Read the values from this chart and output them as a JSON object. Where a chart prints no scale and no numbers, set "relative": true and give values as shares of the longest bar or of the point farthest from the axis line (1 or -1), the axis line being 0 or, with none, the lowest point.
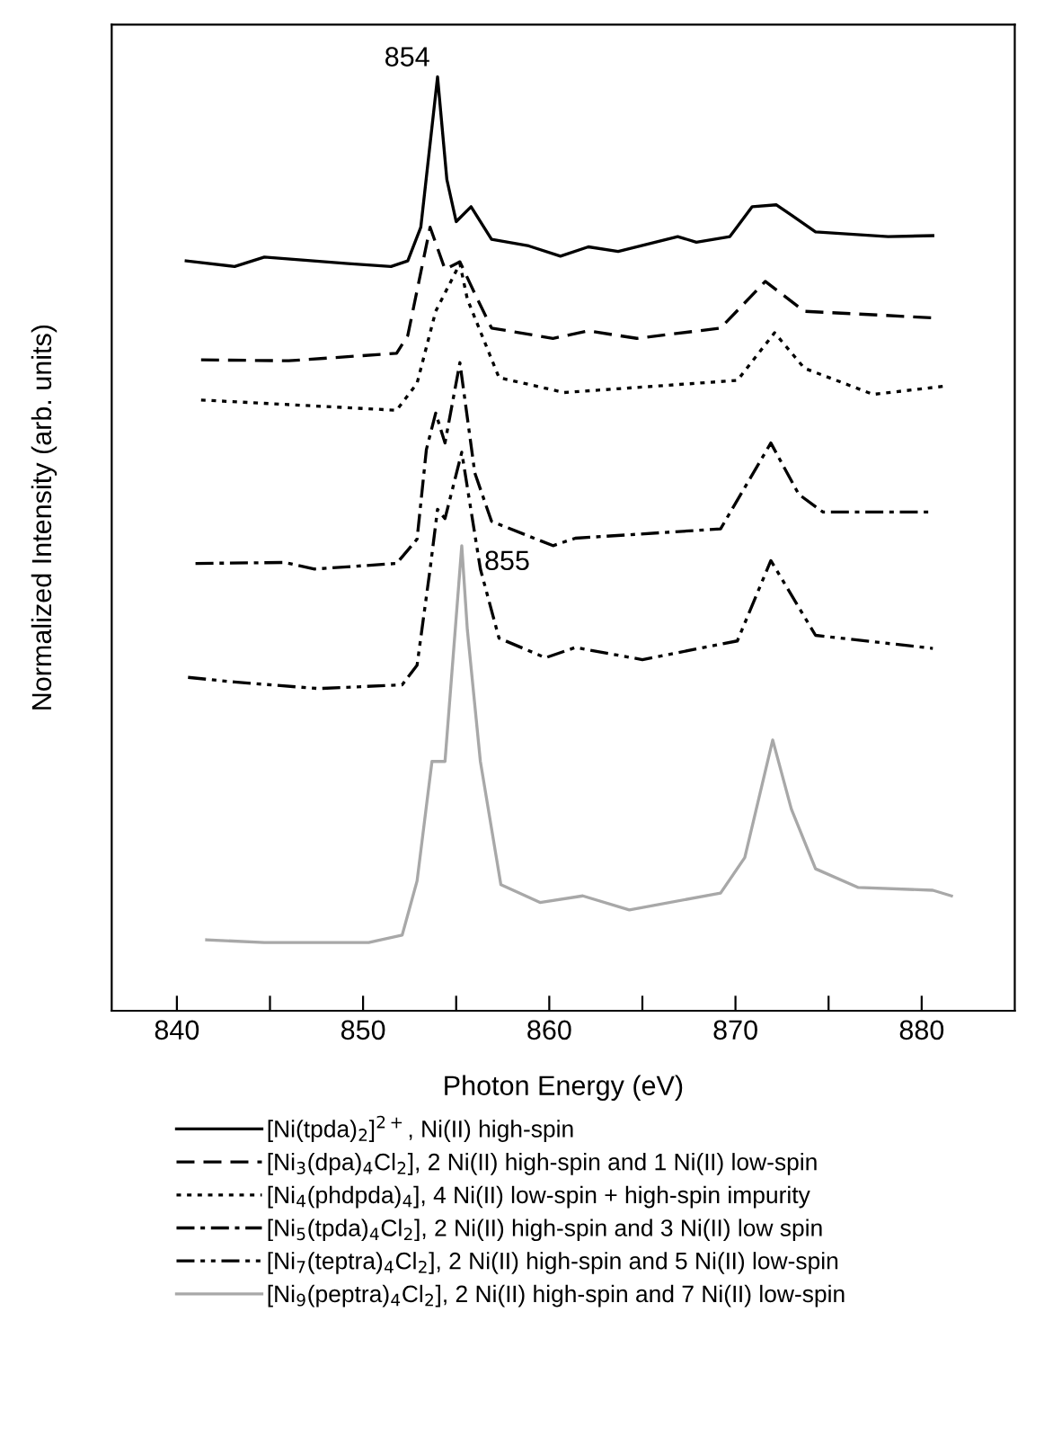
{
  "chart_data": {
    "type": "line",
    "relative": true,
    "xlabel": "Photon Energy (eV)",
    "ylabel": "Normalized Intensity (arb. units)",
    "xlim": [
      836.5,
      885
    ],
    "xticks": [
      840,
      {
        "value": 845,
        "label": null
      },
      850,
      {
        "value": 855,
        "label": null
      },
      860,
      {
        "value": 865,
        "label": null
      },
      870,
      {
        "value": 875,
        "label": null
      },
      880
    ],
    "grid": false,
    "legend": "bottom",
    "marker": "none",
    "annotations": [
      {
        "text": "854",
        "x": 854.0,
        "y": 1.0
      },
      {
        "text": "855",
        "x": 855.3,
        "y": 0.498
      }
    ],
    "series": [
      {
        "name": "[Ni(tpda)$_{2}$]$^{2+}$, Ni(II) high-spin",
        "color": "#000000",
        "line_style": "solid",
        "x": [
          840.5,
          843.1,
          844.7,
          849.2,
          851.5,
          852.4,
          853.1,
          854.0,
          854.5,
          855.0,
          855.8,
          856.9,
          858.9,
          860.6,
          862.1,
          863.7,
          866.9,
          867.9,
          869.7,
          870.9,
          872.2,
          873.0,
          874.3,
          878.2,
          880.6
        ],
        "values": [
          0.803,
          0.797,
          0.807,
          0.8,
          0.797,
          0.803,
          0.839,
          1.0,
          0.89,
          0.845,
          0.861,
          0.826,
          0.819,
          0.808,
          0.818,
          0.813,
          0.829,
          0.823,
          0.829,
          0.861,
          0.863,
          0.852,
          0.834,
          0.829,
          0.83
        ]
      },
      {
        "name": "[Ni$_{3}$(dpa)$_{4}$Cl$_{2}$], 2 Ni(II) high-spin and 1 Ni(II) low-spin",
        "color": "#000000",
        "line_style": "dashed",
        "x": [
          841.3,
          846.0,
          851.8,
          852.4,
          853.6,
          854.4,
          855.2,
          856.0,
          856.9,
          860.2,
          862.1,
          864.7,
          869.2,
          871.6,
          873.7,
          880.6
        ],
        "values": [
          0.697,
          0.696,
          0.704,
          0.723,
          0.839,
          0.794,
          0.802,
          0.768,
          0.731,
          0.72,
          0.728,
          0.72,
          0.731,
          0.781,
          0.749,
          0.742
        ]
      },
      {
        "name": "[Ni$_{4}$(phdpda)$_{4}$], 4 Ni(II) low-spin + high-spin impurity",
        "color": "#000000",
        "line_style": "dotted",
        "x": [
          841.3,
          851.8,
          852.9,
          853.9,
          855.2,
          855.6,
          857.3,
          860.8,
          870.1,
          872.1,
          873.7,
          877.4,
          881.3
        ],
        "values": [
          0.654,
          0.643,
          0.672,
          0.749,
          0.8,
          0.762,
          0.678,
          0.662,
          0.675,
          0.726,
          0.688,
          0.66,
          0.669
        ]
      },
      {
        "name": "[Ni$_{5}$(tpda)$_{4}$Cl$_{2}$], 2 Ni(II) high-spin and 3 Ni(II) low spin",
        "color": "#000000",
        "line_style": "dashdot",
        "x": [
          841.0,
          845.8,
          847.4,
          851.8,
          852.9,
          853.4,
          853.9,
          854.4,
          855.2,
          856.0,
          856.9,
          860.2,
          861.4,
          869.2,
          871.9,
          873.4,
          874.7,
          880.6
        ],
        "values": [
          0.479,
          0.48,
          0.473,
          0.479,
          0.505,
          0.601,
          0.64,
          0.608,
          0.694,
          0.576,
          0.524,
          0.498,
          0.506,
          0.516,
          0.608,
          0.553,
          0.534,
          0.534
        ]
      },
      {
        "name": "[Ni$_{7}$(teptra)$_{4}$Cl$_{2}$], 2 Ni(II) high-spin and 5 Ni(II) low-spin",
        "color": "#000000",
        "line_style": "dashdotdot",
        "x": [
          840.6,
          843.1,
          847.6,
          852.1,
          852.9,
          853.6,
          854.0,
          854.4,
          855.3,
          856.3,
          857.3,
          859.8,
          861.4,
          865.0,
          870.1,
          871.9,
          874.3,
          880.6
        ],
        "values": [
          0.357,
          0.352,
          0.345,
          0.349,
          0.37,
          0.473,
          0.537,
          0.527,
          0.598,
          0.473,
          0.399,
          0.378,
          0.389,
          0.376,
          0.396,
          0.482,
          0.402,
          0.388
        ]
      },
      {
        "name": "[Ni$_{9}$(peptra)$_{4}$Cl$_{2}$], 2 Ni(II) high-spin and 7 Ni(II) low-spin",
        "color": "#a8a8a8",
        "line_style": "solid",
        "x": [
          841.6,
          844.7,
          850.3,
          852.1,
          852.9,
          853.7,
          854.4,
          855.3,
          855.6,
          856.3,
          857.4,
          859.5,
          861.8,
          864.3,
          869.2,
          870.5,
          872.0,
          873.0,
          874.3,
          876.6,
          880.6,
          881.6
        ],
        "values": [
          0.076,
          0.073,
          0.073,
          0.081,
          0.139,
          0.267,
          0.267,
          0.498,
          0.408,
          0.267,
          0.135,
          0.116,
          0.123,
          0.108,
          0.126,
          0.164,
          0.29,
          0.216,
          0.152,
          0.132,
          0.129,
          0.123
        ]
      }
    ]
  }
}
